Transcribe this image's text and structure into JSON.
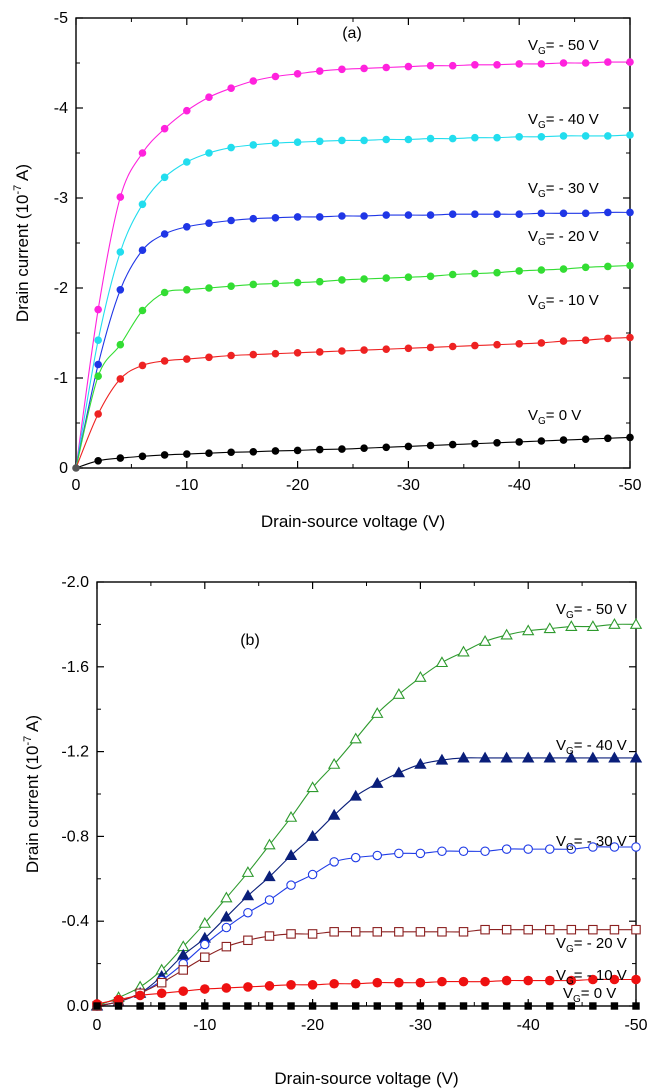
{
  "chart_data": [
    {
      "type": "line",
      "panel_label": "(a)",
      "xlabel": "Drain-source voltage (V)",
      "ylabel": "Drain current (10-7 A)",
      "ylabel_parts": {
        "base": "Drain current (10",
        "exp": "-7",
        "rest": " A)"
      },
      "xlim": [
        0,
        -50
      ],
      "ylim": [
        0,
        -5
      ],
      "x_ticks": [
        0,
        -10,
        -20,
        -30,
        -40,
        -50
      ],
      "x_tick_labels": [
        "0",
        "-10",
        "-20",
        "-30",
        "-40",
        "-50"
      ],
      "y_ticks": [
        0,
        -1,
        -2,
        -3,
        -4,
        -5
      ],
      "y_tick_labels": [
        "0",
        "-1",
        "-2",
        "-3",
        "-4",
        "-5"
      ],
      "grid": false,
      "series": [
        {
          "name": "VG= - 50 V",
          "label_parts": {
            "v": "V",
            "sub": "G",
            "rest": "= - 50 V"
          },
          "color": "#ff22dd",
          "marker": "filled-circle",
          "x": [
            0,
            -2,
            -4,
            -6,
            -8,
            -10,
            -12,
            -14,
            -16,
            -18,
            -20,
            -22,
            -24,
            -26,
            -28,
            -30,
            -32,
            -34,
            -36,
            -38,
            -40,
            -42,
            -44,
            -46,
            -48,
            -50
          ],
          "y": [
            0,
            -1.76,
            -3.01,
            -3.5,
            -3.77,
            -3.97,
            -4.12,
            -4.22,
            -4.3,
            -4.35,
            -4.38,
            -4.41,
            -4.43,
            -4.44,
            -4.45,
            -4.46,
            -4.47,
            -4.47,
            -4.48,
            -4.48,
            -4.49,
            -4.49,
            -4.5,
            -4.5,
            -4.51,
            -4.51
          ]
        },
        {
          "name": "VG= - 40 V",
          "label_parts": {
            "v": "V",
            "sub": "G",
            "rest": "= - 40 V"
          },
          "color": "#22ddee",
          "marker": "filled-circle",
          "x": [
            0,
            -2,
            -4,
            -6,
            -8,
            -10,
            -12,
            -14,
            -16,
            -18,
            -20,
            -22,
            -24,
            -26,
            -28,
            -30,
            -32,
            -34,
            -36,
            -38,
            -40,
            -42,
            -44,
            -46,
            -48,
            -50
          ],
          "y": [
            0,
            -1.42,
            -2.4,
            -2.93,
            -3.23,
            -3.4,
            -3.5,
            -3.56,
            -3.59,
            -3.61,
            -3.62,
            -3.63,
            -3.64,
            -3.64,
            -3.65,
            -3.65,
            -3.66,
            -3.66,
            -3.67,
            -3.67,
            -3.68,
            -3.68,
            -3.69,
            -3.69,
            -3.69,
            -3.7
          ]
        },
        {
          "name": "VG= - 30 V",
          "label_parts": {
            "v": "V",
            "sub": "G",
            "rest": "= - 30 V"
          },
          "color": "#1f36e6",
          "marker": "filled-circle",
          "x": [
            0,
            -2,
            -4,
            -6,
            -8,
            -10,
            -12,
            -14,
            -16,
            -18,
            -20,
            -22,
            -24,
            -26,
            -28,
            -30,
            -32,
            -34,
            -36,
            -38,
            -40,
            -42,
            -44,
            -46,
            -48,
            -50
          ],
          "y": [
            0,
            -1.15,
            -1.98,
            -2.42,
            -2.6,
            -2.68,
            -2.72,
            -2.75,
            -2.77,
            -2.78,
            -2.79,
            -2.79,
            -2.8,
            -2.8,
            -2.81,
            -2.81,
            -2.81,
            -2.82,
            -2.82,
            -2.82,
            -2.82,
            -2.83,
            -2.83,
            -2.83,
            -2.84,
            -2.84
          ]
        },
        {
          "name": "VG= - 20 V",
          "label_parts": {
            "v": "V",
            "sub": "G",
            "rest": "= - 20 V"
          },
          "color": "#33dd33",
          "marker": "filled-circle",
          "x": [
            0,
            -2,
            -4,
            -6,
            -8,
            -10,
            -12,
            -14,
            -16,
            -18,
            -20,
            -22,
            -24,
            -26,
            -28,
            -30,
            -32,
            -34,
            -36,
            -38,
            -40,
            -42,
            -44,
            -46,
            -48,
            -50
          ],
          "y": [
            0,
            -1.02,
            -1.37,
            -1.75,
            -1.95,
            -1.98,
            -2.0,
            -2.02,
            -2.04,
            -2.05,
            -2.06,
            -2.07,
            -2.09,
            -2.1,
            -2.11,
            -2.12,
            -2.13,
            -2.15,
            -2.16,
            -2.17,
            -2.19,
            -2.2,
            -2.21,
            -2.23,
            -2.24,
            -2.25
          ]
        },
        {
          "name": "VG= - 10 V",
          "label_parts": {
            "v": "V",
            "sub": "G",
            "rest": "= - 10 V"
          },
          "color": "#ee2222",
          "marker": "filled-circle",
          "x": [
            0,
            -2,
            -4,
            -6,
            -8,
            -10,
            -12,
            -14,
            -16,
            -18,
            -20,
            -22,
            -24,
            -26,
            -28,
            -30,
            -32,
            -34,
            -36,
            -38,
            -40,
            -42,
            -44,
            -46,
            -48,
            -50
          ],
          "y": [
            0,
            -0.6,
            -0.99,
            -1.14,
            -1.19,
            -1.21,
            -1.23,
            -1.25,
            -1.26,
            -1.27,
            -1.28,
            -1.29,
            -1.3,
            -1.31,
            -1.32,
            -1.33,
            -1.34,
            -1.35,
            -1.36,
            -1.37,
            -1.38,
            -1.39,
            -1.41,
            -1.42,
            -1.44,
            -1.45
          ]
        },
        {
          "name": "VG= 0 V",
          "label_parts": {
            "v": "V",
            "sub": "G",
            "rest": "= 0 V"
          },
          "color": "#000000",
          "marker": "filled-circle",
          "x": [
            0,
            -2,
            -4,
            -6,
            -8,
            -10,
            -12,
            -14,
            -16,
            -18,
            -20,
            -22,
            -24,
            -26,
            -28,
            -30,
            -32,
            -34,
            -36,
            -38,
            -40,
            -42,
            -44,
            -46,
            -48,
            -50
          ],
          "y": [
            0,
            -0.08,
            -0.11,
            -0.13,
            -0.145,
            -0.155,
            -0.165,
            -0.175,
            -0.18,
            -0.19,
            -0.195,
            -0.205,
            -0.21,
            -0.22,
            -0.23,
            -0.24,
            -0.25,
            -0.26,
            -0.27,
            -0.28,
            -0.29,
            -0.3,
            -0.31,
            -0.32,
            -0.33,
            -0.34
          ]
        }
      ]
    },
    {
      "type": "line",
      "panel_label": "(b)",
      "xlabel": "Drain-source voltage (V)",
      "ylabel": "Drain current (10-7 A)",
      "ylabel_parts": {
        "base": "Drain current (10",
        "exp": "-7",
        "rest": " A)"
      },
      "xlim": [
        0,
        -50
      ],
      "ylim": [
        0,
        -2.0
      ],
      "x_ticks": [
        0,
        -10,
        -20,
        -30,
        -40,
        -50
      ],
      "x_tick_labels": [
        "0",
        "-10",
        "-20",
        "-30",
        "-40",
        "-50"
      ],
      "y_ticks": [
        0,
        -0.4,
        -0.8,
        -1.2,
        -1.6,
        -2.0
      ],
      "y_tick_labels": [
        "0.0",
        "-0.4",
        "-0.8",
        "-1.2",
        "-1.6",
        "-2.0"
      ],
      "grid": false,
      "series": [
        {
          "name": "VG= - 50 V",
          "label_parts": {
            "v": "V",
            "sub": "G",
            "rest": "= - 50 V"
          },
          "color": "#2e9a2e",
          "marker": "open-triangle",
          "x": [
            0,
            -2,
            -4,
            -6,
            -8,
            -10,
            -12,
            -14,
            -16,
            -18,
            -20,
            -22,
            -24,
            -26,
            -28,
            -30,
            -32,
            -34,
            -36,
            -38,
            -40,
            -42,
            -44,
            -46,
            -48,
            -50
          ],
          "y": [
            0,
            -0.04,
            -0.09,
            -0.17,
            -0.28,
            -0.39,
            -0.51,
            -0.63,
            -0.76,
            -0.89,
            -1.03,
            -1.14,
            -1.26,
            -1.38,
            -1.47,
            -1.55,
            -1.62,
            -1.67,
            -1.72,
            -1.75,
            -1.77,
            -1.78,
            -1.79,
            -1.79,
            -1.8,
            -1.8
          ]
        },
        {
          "name": "VG= - 40 V",
          "label_parts": {
            "v": "V",
            "sub": "G",
            "rest": "= - 40 V"
          },
          "color": "#0a1f7a",
          "marker": "filled-triangle",
          "x": [
            0,
            -2,
            -4,
            -6,
            -8,
            -10,
            -12,
            -14,
            -16,
            -18,
            -20,
            -22,
            -24,
            -26,
            -28,
            -30,
            -32,
            -34,
            -36,
            -38,
            -40,
            -42,
            -44,
            -46,
            -48,
            -50
          ],
          "y": [
            0,
            -0.02,
            -0.06,
            -0.14,
            -0.24,
            -0.32,
            -0.42,
            -0.52,
            -0.61,
            -0.71,
            -0.8,
            -0.9,
            -0.99,
            -1.05,
            -1.1,
            -1.14,
            -1.16,
            -1.17,
            -1.17,
            -1.17,
            -1.17,
            -1.17,
            -1.17,
            -1.17,
            -1.17,
            -1.17
          ]
        },
        {
          "name": "VG= - 30 V",
          "label_parts": {
            "v": "V",
            "sub": "G",
            "rest": "= - 30 V"
          },
          "color": "#1f3be6",
          "marker": "open-circle",
          "x": [
            0,
            -2,
            -4,
            -6,
            -8,
            -10,
            -12,
            -14,
            -16,
            -18,
            -20,
            -22,
            -24,
            -26,
            -28,
            -30,
            -32,
            -34,
            -36,
            -38,
            -40,
            -42,
            -44,
            -46,
            -48,
            -50
          ],
          "y": [
            0,
            -0.02,
            -0.06,
            -0.12,
            -0.2,
            -0.29,
            -0.37,
            -0.44,
            -0.5,
            -0.57,
            -0.62,
            -0.68,
            -0.7,
            -0.71,
            -0.72,
            -0.72,
            -0.73,
            -0.73,
            -0.73,
            -0.74,
            -0.74,
            -0.74,
            -0.74,
            -0.75,
            -0.75,
            -0.75
          ]
        },
        {
          "name": "VG= - 20 V",
          "label_parts": {
            "v": "V",
            "sub": "G",
            "rest": "= - 20 V"
          },
          "color": "#8b2020",
          "marker": "open-square",
          "x": [
            0,
            -2,
            -4,
            -6,
            -8,
            -10,
            -12,
            -14,
            -16,
            -18,
            -20,
            -22,
            -24,
            -26,
            -28,
            -30,
            -32,
            -34,
            -36,
            -38,
            -40,
            -42,
            -44,
            -46,
            -48,
            -50
          ],
          "y": [
            0,
            -0.02,
            -0.06,
            -0.11,
            -0.17,
            -0.23,
            -0.28,
            -0.31,
            -0.33,
            -0.34,
            -0.34,
            -0.35,
            -0.35,
            -0.35,
            -0.35,
            -0.35,
            -0.35,
            -0.35,
            -0.36,
            -0.36,
            -0.36,
            -0.36,
            -0.36,
            -0.36,
            -0.36,
            -0.36
          ]
        },
        {
          "name": "VG= - 10 V",
          "label_parts": {
            "v": "V",
            "sub": "G",
            "rest": "= - 10 V"
          },
          "color": "#ee1111",
          "marker": "filled-circle-large",
          "x": [
            0,
            -2,
            -4,
            -6,
            -8,
            -10,
            -12,
            -14,
            -16,
            -18,
            -20,
            -22,
            -24,
            -26,
            -28,
            -30,
            -32,
            -34,
            -36,
            -38,
            -40,
            -42,
            -44,
            -46,
            -48,
            -50
          ],
          "y": [
            -0.01,
            -0.03,
            -0.05,
            -0.06,
            -0.07,
            -0.08,
            -0.085,
            -0.09,
            -0.095,
            -0.1,
            -0.1,
            -0.105,
            -0.105,
            -0.11,
            -0.11,
            -0.11,
            -0.115,
            -0.115,
            -0.115,
            -0.12,
            -0.12,
            -0.12,
            -0.12,
            -0.125,
            -0.125,
            -0.125
          ]
        },
        {
          "name": "VG= 0 V",
          "label_parts": {
            "v": "V",
            "sub": "G",
            "rest": "= 0 V"
          },
          "color": "#000000",
          "marker": "filled-square",
          "x": [
            0,
            -2,
            -4,
            -6,
            -8,
            -10,
            -12,
            -14,
            -16,
            -18,
            -20,
            -22,
            -24,
            -26,
            -28,
            -30,
            -32,
            -34,
            -36,
            -38,
            -40,
            -42,
            -44,
            -46,
            -48,
            -50
          ],
          "y": [
            0,
            0,
            0,
            0,
            0,
            0,
            0,
            0,
            0,
            0,
            0,
            0,
            0,
            0,
            0,
            0,
            0,
            0,
            0,
            0,
            0,
            0,
            0,
            0,
            0,
            0
          ]
        }
      ]
    }
  ]
}
